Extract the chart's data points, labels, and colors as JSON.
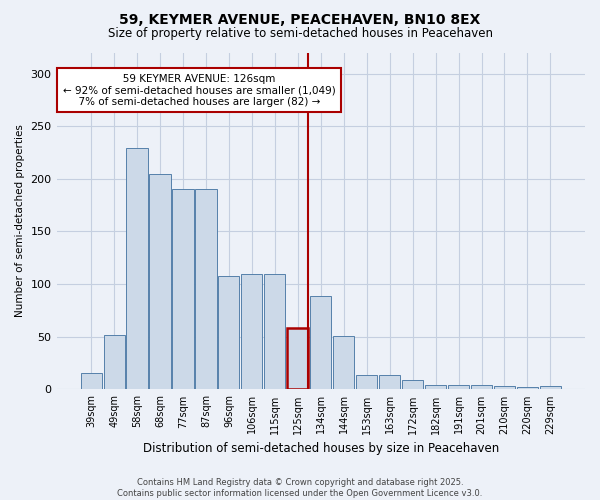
{
  "title": "59, KEYMER AVENUE, PEACEHAVEN, BN10 8EX",
  "subtitle": "Size of property relative to semi-detached houses in Peacehaven",
  "xlabel": "Distribution of semi-detached houses by size in Peacehaven",
  "ylabel": "Number of semi-detached properties",
  "footnote1": "Contains HM Land Registry data © Crown copyright and database right 2025.",
  "footnote2": "Contains public sector information licensed under the Open Government Licence v3.0.",
  "annotation_line1": "   59 KEYMER AVENUE: 126sqm   ",
  "annotation_line2": "← 92% of semi-detached houses are smaller (1,049)",
  "annotation_line3": "  7% of semi-detached houses are larger (82) →  ",
  "categories": [
    "39sqm",
    "49sqm",
    "58sqm",
    "68sqm",
    "77sqm",
    "87sqm",
    "96sqm",
    "106sqm",
    "115sqm",
    "125sqm",
    "134sqm",
    "144sqm",
    "153sqm",
    "163sqm",
    "172sqm",
    "182sqm",
    "191sqm",
    "201sqm",
    "210sqm",
    "220sqm",
    "229sqm"
  ],
  "values": [
    16,
    52,
    229,
    205,
    190,
    190,
    108,
    110,
    110,
    58,
    89,
    51,
    14,
    14,
    9,
    4,
    4,
    4,
    3,
    2,
    3
  ],
  "bar_color": "#ccd9e8",
  "bar_edge_color": "#5580aa",
  "highlight_index": 9,
  "highlight_bar_edge_color": "#aa0000",
  "vline_color": "#aa0000",
  "ylim": [
    0,
    320
  ],
  "yticks": [
    0,
    50,
    100,
    150,
    200,
    250,
    300
  ],
  "grid_color": "#c5cfe0",
  "bg_color": "#edf1f8",
  "annotation_box_color": "#aa0000",
  "annotation_box_facecolor": "#ffffff"
}
